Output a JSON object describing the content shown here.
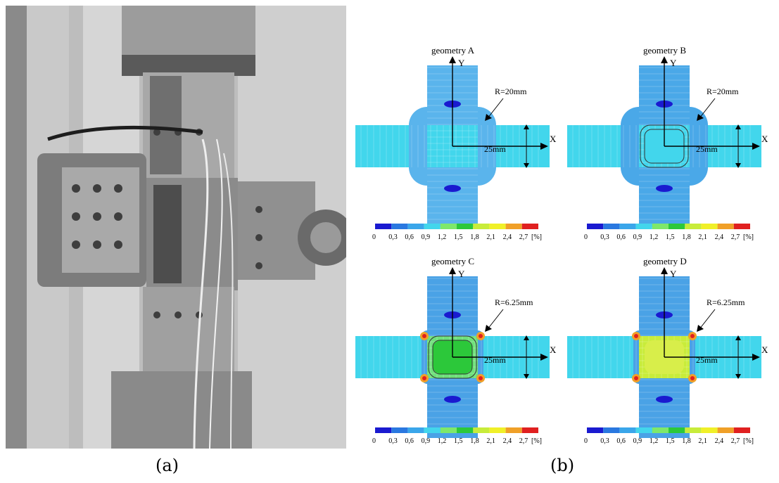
{
  "figure": {
    "caption_a": "(a)",
    "caption_b": "(b)"
  },
  "panels": [
    {
      "title": "geometry A",
      "radius_label": "R=20mm",
      "dim_label": "25mm",
      "axis_x": "X",
      "axis_y": "Y"
    },
    {
      "title": "geometry B",
      "radius_label": "R=20mm",
      "dim_label": "25mm",
      "axis_x": "X",
      "axis_y": "Y"
    },
    {
      "title": "geometry C",
      "radius_label": "R=6.25mm",
      "dim_label": "25mm",
      "axis_x": "X",
      "axis_y": "Y"
    },
    {
      "title": "geometry D",
      "radius_label": "R=6.25mm",
      "dim_label": "25mm",
      "axis_x": "X",
      "axis_y": "Y"
    }
  ],
  "colorbar": {
    "ticks": [
      "0",
      "0,3",
      "0,6",
      "0,9",
      "1,2",
      "1,5",
      "1,8",
      "2,1",
      "2,4",
      "2,7"
    ],
    "unit": "[%]",
    "colors": [
      "#1a1ad0",
      "#2a78e0",
      "#3aa6ea",
      "#42d6ec",
      "#7ee86a",
      "#2cc83a",
      "#c8ec3a",
      "#f0f028",
      "#f0a028",
      "#e02020"
    ]
  }
}
